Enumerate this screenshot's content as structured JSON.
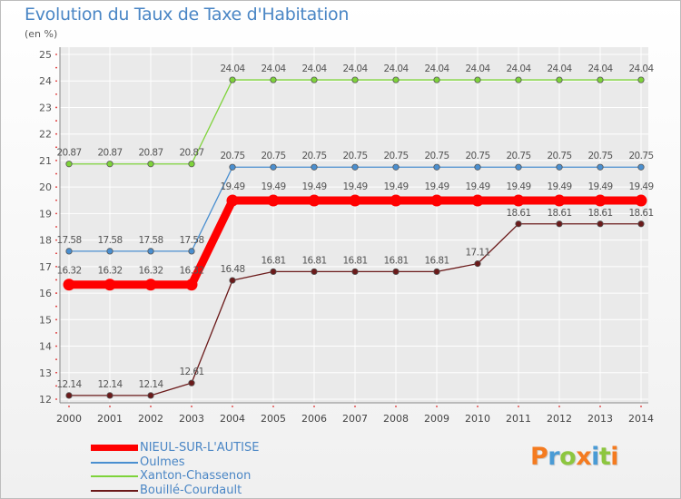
{
  "title": "Evolution du Taux de Taxe d'Habitation",
  "subtitle": "(en %)",
  "logo": {
    "text": "Proxiti",
    "colors": [
      "#f47b20",
      "#4a9bd5",
      "#8dc63f",
      "#f47b20",
      "#4a9bd5",
      "#8dc63f",
      "#f47b20"
    ]
  },
  "chart_data": {
    "type": "line",
    "title": "Evolution du Taux de Taxe d'Habitation",
    "ylabel": "(en %)",
    "xlabel": "",
    "ylim": [
      12,
      25
    ],
    "yticks": [
      12,
      13,
      14,
      15,
      16,
      17,
      18,
      19,
      20,
      21,
      22,
      23,
      24,
      25
    ],
    "grid": true,
    "legend_position": "bottom-left",
    "x": [
      2000,
      2001,
      2002,
      2003,
      2004,
      2005,
      2006,
      2007,
      2008,
      2009,
      2010,
      2011,
      2012,
      2013,
      2014
    ],
    "series": [
      {
        "name": "NIEUL-SUR-L'AUTISE",
        "color": "#ff0000",
        "emphasis": true,
        "values": [
          16.32,
          16.32,
          16.32,
          16.32,
          19.49,
          19.49,
          19.49,
          19.49,
          19.49,
          19.49,
          19.49,
          19.49,
          19.49,
          19.49,
          19.49
        ]
      },
      {
        "name": "Oulmes",
        "color": "#4a8fd0",
        "emphasis": false,
        "values": [
          17.58,
          17.58,
          17.58,
          17.58,
          20.75,
          20.75,
          20.75,
          20.75,
          20.75,
          20.75,
          20.75,
          20.75,
          20.75,
          20.75,
          20.75
        ]
      },
      {
        "name": "Xanton-Chassenon",
        "color": "#7ed33a",
        "emphasis": false,
        "values": [
          20.87,
          20.87,
          20.87,
          20.87,
          24.04,
          24.04,
          24.04,
          24.04,
          24.04,
          24.04,
          24.04,
          24.04,
          24.04,
          24.04,
          24.04
        ]
      },
      {
        "name": "Bouillé-Courdault",
        "color": "#6b1a1a",
        "emphasis": false,
        "values": [
          12.14,
          12.14,
          12.14,
          12.61,
          16.48,
          16.81,
          16.81,
          16.81,
          16.81,
          16.81,
          17.11,
          18.61,
          18.61,
          18.61,
          18.61
        ]
      }
    ],
    "data_labels": [
      [
        "16.32",
        "16.32",
        "16.32",
        "16.32",
        "19.49",
        "19.49",
        "19.49",
        "19.49",
        "19.49",
        "19.49",
        "19.49",
        "19.49",
        "19.49",
        "19.49",
        "19.49"
      ],
      [
        "17.58",
        "17.58",
        "17.58",
        "17.58",
        "20.75",
        "20.75",
        "20.75",
        "20.75",
        "20.75",
        "20.75",
        "20.75",
        "20.75",
        "20.75",
        "20.75",
        "20.75"
      ],
      [
        "20.87",
        "20.87",
        "20.87",
        "20.87",
        "24.04",
        "24.04",
        "24.04",
        "24.04",
        "24.04",
        "24.04",
        "24.04",
        "24.04",
        "24.04",
        "24.04",
        "24.04"
      ],
      [
        "12.14",
        "12.14",
        "12.14",
        "12.61",
        "16.48",
        "16.81",
        "16.81",
        "16.81",
        "16.81",
        "16.81",
        "17.11",
        "18.61",
        "18.61",
        "18.61",
        "18.61"
      ]
    ]
  }
}
